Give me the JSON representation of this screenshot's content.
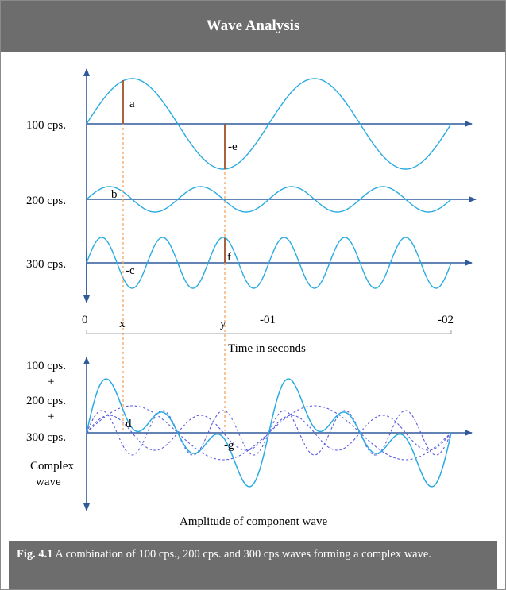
{
  "title": "Wave Analysis",
  "labels": {
    "wave_100": "100 cps.",
    "wave_200": "200 cps.",
    "wave_300": "300 cps.",
    "sum_100": "100 cps.",
    "plus_1": "+",
    "sum_200": "200 cps.",
    "plus_2": "+",
    "sum_300": "300 cps.",
    "complex_line1": "Complex",
    "complex_line2": "wave",
    "point_a": "a",
    "point_e": "-e",
    "point_b": "b",
    "point_c": "-c",
    "point_f": "f",
    "point_d": "d",
    "point_g": "-g",
    "tick_0": "0",
    "tick_x": "x",
    "tick_y": "y",
    "tick_01": "-01",
    "tick_02": "-02",
    "time_axis": "Time in seconds",
    "amplitude_caption": "Amplitude of component wave"
  },
  "caption": {
    "label": "Fig. 4.1",
    "text": " A combination of 100 cps., 200 cps. and 300 cps waves forming a complex wave."
  },
  "colors": {
    "header_bg": "#6d6d6d",
    "axis": "#2e5a9a",
    "wave": "#29abe2",
    "dashed_wave": "#5a5ae0",
    "marker": "#a0522d",
    "guide": "#f4a460"
  }
}
